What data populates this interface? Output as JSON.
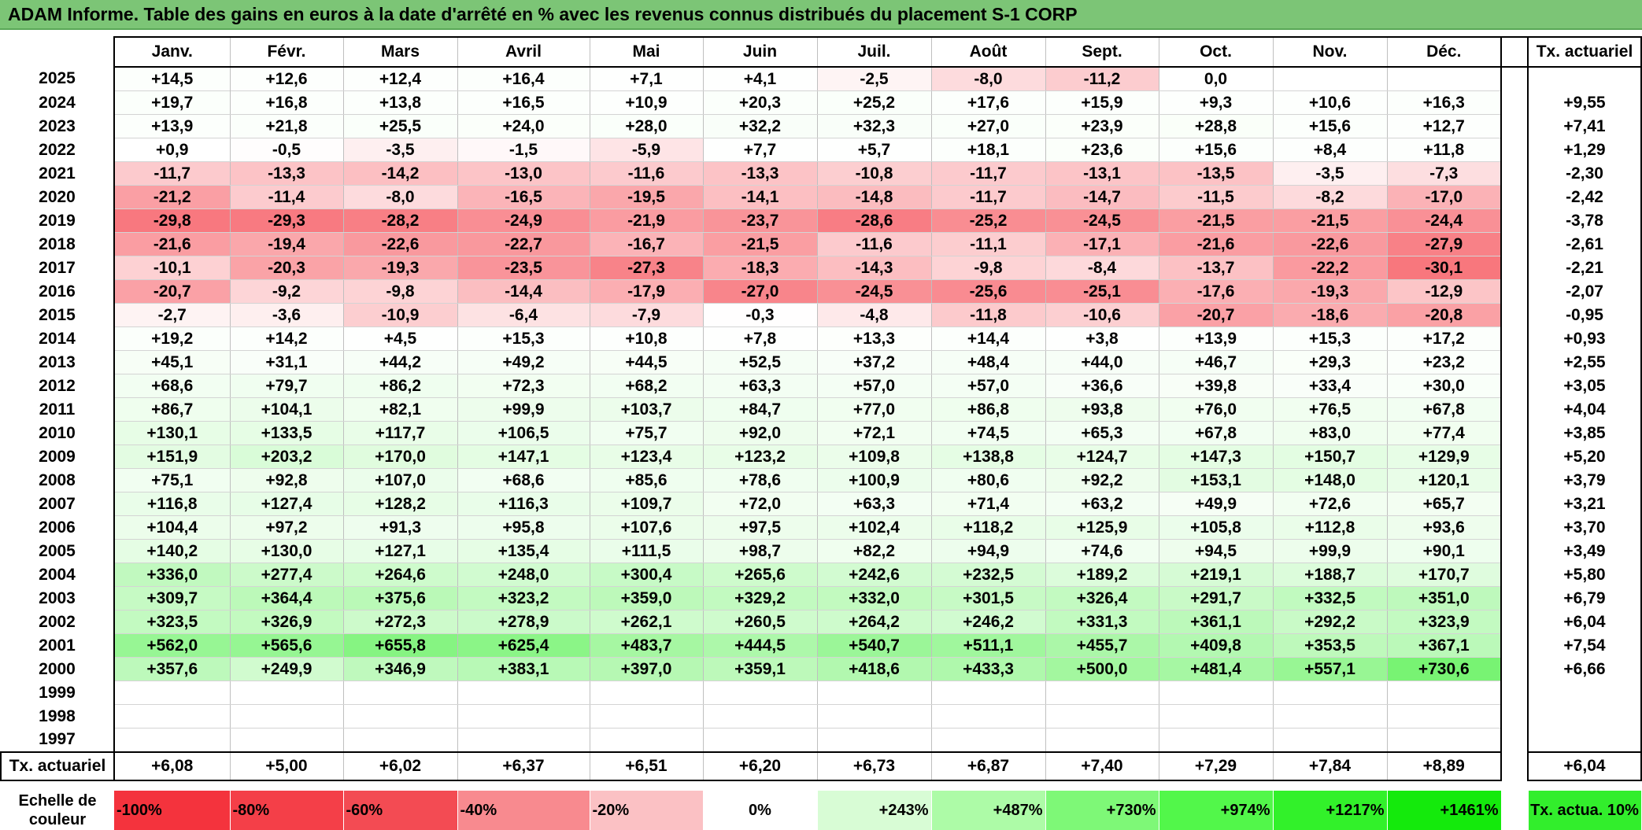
{
  "title": "ADAM Informe. Table des gains en euros à la date d'arrêté en % avec les revenus connus distribués du placement S-1 CORP",
  "months": [
    "Janv.",
    "Févr.",
    "Mars",
    "Avril",
    "Mai",
    "Juin",
    "Juil.",
    "Août",
    "Sept.",
    "Oct.",
    "Nov.",
    "Déc."
  ],
  "tx_header": "Tx. actuariel",
  "rows": [
    {
      "year": "2025",
      "values": [
        "+14,5",
        "+12,6",
        "+12,4",
        "+16,4",
        "+7,1",
        "+4,1",
        "-2,5",
        "-8,0",
        "-11,2",
        "0,0",
        "",
        ""
      ],
      "tx": ""
    },
    {
      "year": "2024",
      "values": [
        "+19,7",
        "+16,8",
        "+13,8",
        "+16,5",
        "+10,9",
        "+20,3",
        "+25,2",
        "+17,6",
        "+15,9",
        "+9,3",
        "+10,6",
        "+16,3"
      ],
      "tx": "+9,55"
    },
    {
      "year": "2023",
      "values": [
        "+13,9",
        "+21,8",
        "+25,5",
        "+24,0",
        "+28,0",
        "+32,2",
        "+32,3",
        "+27,0",
        "+23,9",
        "+28,8",
        "+15,6",
        "+12,7"
      ],
      "tx": "+7,41"
    },
    {
      "year": "2022",
      "values": [
        "+0,9",
        "-0,5",
        "-3,5",
        "-1,5",
        "-5,9",
        "+7,7",
        "+5,7",
        "+18,1",
        "+23,6",
        "+15,6",
        "+8,4",
        "+11,8"
      ],
      "tx": "+1,29"
    },
    {
      "year": "2021",
      "values": [
        "-11,7",
        "-13,3",
        "-14,2",
        "-13,0",
        "-11,6",
        "-13,3",
        "-10,8",
        "-11,7",
        "-13,1",
        "-13,5",
        "-3,5",
        "-7,3"
      ],
      "tx": "-2,30"
    },
    {
      "year": "2020",
      "values": [
        "-21,2",
        "-11,4",
        "-8,0",
        "-16,5",
        "-19,5",
        "-14,1",
        "-14,8",
        "-11,7",
        "-14,7",
        "-11,5",
        "-8,2",
        "-17,0"
      ],
      "tx": "-2,42"
    },
    {
      "year": "2019",
      "values": [
        "-29,8",
        "-29,3",
        "-28,2",
        "-24,9",
        "-21,9",
        "-23,7",
        "-28,6",
        "-25,2",
        "-24,5",
        "-21,5",
        "-21,5",
        "-24,4"
      ],
      "tx": "-3,78"
    },
    {
      "year": "2018",
      "values": [
        "-21,6",
        "-19,4",
        "-22,6",
        "-22,7",
        "-16,7",
        "-21,5",
        "-11,6",
        "-11,1",
        "-17,1",
        "-21,6",
        "-22,6",
        "-27,9"
      ],
      "tx": "-2,61"
    },
    {
      "year": "2017",
      "values": [
        "-10,1",
        "-20,3",
        "-19,3",
        "-23,5",
        "-27,3",
        "-18,3",
        "-14,3",
        "-9,8",
        "-8,4",
        "-13,7",
        "-22,2",
        "-30,1"
      ],
      "tx": "-2,21"
    },
    {
      "year": "2016",
      "values": [
        "-20,7",
        "-9,2",
        "-9,8",
        "-14,4",
        "-17,9",
        "-27,0",
        "-24,5",
        "-25,6",
        "-25,1",
        "-17,6",
        "-19,3",
        "-12,9"
      ],
      "tx": "-2,07"
    },
    {
      "year": "2015",
      "values": [
        "-2,7",
        "-3,6",
        "-10,9",
        "-6,4",
        "-7,9",
        "-0,3",
        "-4,8",
        "-11,8",
        "-10,6",
        "-20,7",
        "-18,6",
        "-20,8"
      ],
      "tx": "-0,95"
    },
    {
      "year": "2014",
      "values": [
        "+19,2",
        "+14,2",
        "+4,5",
        "+15,3",
        "+10,8",
        "+7,8",
        "+13,3",
        "+14,4",
        "+3,8",
        "+13,9",
        "+15,3",
        "+17,2"
      ],
      "tx": "+0,93"
    },
    {
      "year": "2013",
      "values": [
        "+45,1",
        "+31,1",
        "+44,2",
        "+49,2",
        "+44,5",
        "+52,5",
        "+37,2",
        "+48,4",
        "+44,0",
        "+46,7",
        "+29,3",
        "+23,2"
      ],
      "tx": "+2,55"
    },
    {
      "year": "2012",
      "values": [
        "+68,6",
        "+79,7",
        "+86,2",
        "+72,3",
        "+68,2",
        "+63,3",
        "+57,0",
        "+57,0",
        "+36,6",
        "+39,8",
        "+33,4",
        "+30,0"
      ],
      "tx": "+3,05"
    },
    {
      "year": "2011",
      "values": [
        "+86,7",
        "+104,1",
        "+82,1",
        "+99,9",
        "+103,7",
        "+84,7",
        "+77,0",
        "+86,8",
        "+93,8",
        "+76,0",
        "+76,5",
        "+67,8"
      ],
      "tx": "+4,04"
    },
    {
      "year": "2010",
      "values": [
        "+130,1",
        "+133,5",
        "+117,7",
        "+106,5",
        "+75,7",
        "+92,0",
        "+72,1",
        "+74,5",
        "+65,3",
        "+67,8",
        "+83,0",
        "+77,4"
      ],
      "tx": "+3,85"
    },
    {
      "year": "2009",
      "values": [
        "+151,9",
        "+203,2",
        "+170,0",
        "+147,1",
        "+123,4",
        "+123,2",
        "+109,8",
        "+138,8",
        "+124,7",
        "+147,3",
        "+150,7",
        "+129,9"
      ],
      "tx": "+5,20"
    },
    {
      "year": "2008",
      "values": [
        "+75,1",
        "+92,8",
        "+107,0",
        "+68,6",
        "+85,6",
        "+78,6",
        "+100,9",
        "+80,6",
        "+92,2",
        "+153,1",
        "+148,0",
        "+120,1"
      ],
      "tx": "+3,79"
    },
    {
      "year": "2007",
      "values": [
        "+116,8",
        "+127,4",
        "+128,2",
        "+116,3",
        "+109,7",
        "+72,0",
        "+63,3",
        "+71,4",
        "+63,2",
        "+49,9",
        "+72,6",
        "+65,7"
      ],
      "tx": "+3,21"
    },
    {
      "year": "2006",
      "values": [
        "+104,4",
        "+97,2",
        "+91,3",
        "+95,8",
        "+107,6",
        "+97,5",
        "+102,4",
        "+118,2",
        "+125,9",
        "+105,8",
        "+112,8",
        "+93,6"
      ],
      "tx": "+3,70"
    },
    {
      "year": "2005",
      "values": [
        "+140,2",
        "+130,0",
        "+127,1",
        "+135,4",
        "+111,5",
        "+98,7",
        "+82,2",
        "+94,9",
        "+74,6",
        "+94,5",
        "+99,9",
        "+90,1"
      ],
      "tx": "+3,49"
    },
    {
      "year": "2004",
      "values": [
        "+336,0",
        "+277,4",
        "+264,6",
        "+248,0",
        "+300,4",
        "+265,6",
        "+242,6",
        "+232,5",
        "+189,2",
        "+219,1",
        "+188,7",
        "+170,7"
      ],
      "tx": "+5,80"
    },
    {
      "year": "2003",
      "values": [
        "+309,7",
        "+364,4",
        "+375,6",
        "+323,2",
        "+359,0",
        "+329,2",
        "+332,0",
        "+301,5",
        "+326,4",
        "+291,7",
        "+332,5",
        "+351,0"
      ],
      "tx": "+6,79"
    },
    {
      "year": "2002",
      "values": [
        "+323,5",
        "+326,9",
        "+272,3",
        "+278,9",
        "+262,1",
        "+260,5",
        "+264,2",
        "+246,2",
        "+331,3",
        "+361,1",
        "+292,2",
        "+323,9"
      ],
      "tx": "+6,04"
    },
    {
      "year": "2001",
      "values": [
        "+562,0",
        "+565,6",
        "+655,8",
        "+625,4",
        "+483,7",
        "+444,5",
        "+540,7",
        "+511,1",
        "+455,7",
        "+409,8",
        "+353,5",
        "+367,1"
      ],
      "tx": "+7,54"
    },
    {
      "year": "2000",
      "values": [
        "+357,6",
        "+249,9",
        "+346,9",
        "+383,1",
        "+397,0",
        "+359,1",
        "+418,6",
        "+433,3",
        "+500,0",
        "+481,4",
        "+557,1",
        "+730,6"
      ],
      "tx": "+6,66"
    },
    {
      "year": "1999",
      "values": [
        "",
        "",
        "",
        "",
        "",
        "",
        "",
        "",
        "",
        "",
        "",
        ""
      ],
      "tx": ""
    },
    {
      "year": "1998",
      "values": [
        "",
        "",
        "",
        "",
        "",
        "",
        "",
        "",
        "",
        "",
        "",
        ""
      ],
      "tx": ""
    },
    {
      "year": "1997",
      "values": [
        "",
        "",
        "",
        "",
        "",
        "",
        "",
        "",
        "",
        "",
        "",
        ""
      ],
      "tx": ""
    }
  ],
  "tx_row": {
    "label": "Tx. actuariel",
    "values": [
      "+6,08",
      "+5,00",
      "+6,02",
      "+6,37",
      "+6,51",
      "+6,20",
      "+6,73",
      "+6,87",
      "+7,40",
      "+7,29",
      "+7,84",
      "+8,89"
    ],
    "overall": "+6,04"
  },
  "scale": {
    "label": "Echelle de couleur",
    "items": [
      {
        "text": "-100%",
        "color": "#f4333d",
        "align": "left"
      },
      {
        "text": "-80%",
        "color": "#f43f48",
        "align": "left"
      },
      {
        "text": "-60%",
        "color": "#f34b53",
        "align": "left"
      },
      {
        "text": "-40%",
        "color": "#f88a8f",
        "align": "left"
      },
      {
        "text": "-20%",
        "color": "#fbc1c4",
        "align": "left"
      },
      {
        "text": "0%",
        "color": "#ffffff",
        "align": "center"
      },
      {
        "text": "+243%",
        "color": "#d8fcd5",
        "align": "right"
      },
      {
        "text": "+487%",
        "color": "#adfba7",
        "align": "right"
      },
      {
        "text": "+730%",
        "color": "#7ef877",
        "align": "right"
      },
      {
        "text": "+974%",
        "color": "#52f74a",
        "align": "right"
      },
      {
        "text": "+1217%",
        "color": "#32f12a",
        "align": "right"
      },
      {
        "text": "+1461%",
        "color": "#14ea0c",
        "align": "right"
      }
    ],
    "tx_legend": "Tx. actua. 10%",
    "tx_legend_color": "#32ee2c"
  },
  "colors": {
    "title_bg": "#7cc576",
    "negative_max": "#f4333d",
    "positive_max": "#14ea0c"
  }
}
